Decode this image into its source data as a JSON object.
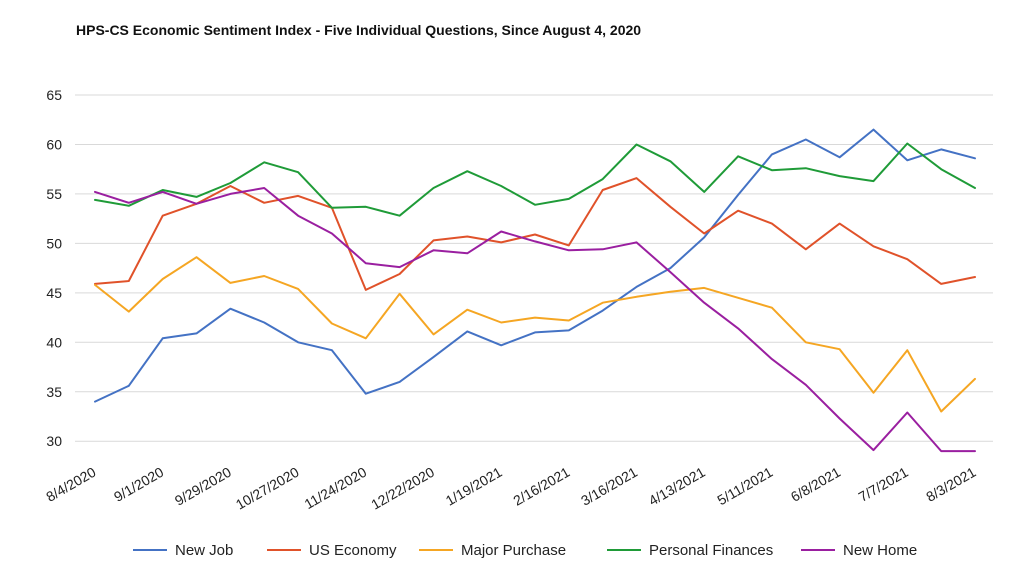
{
  "chart_data": {
    "type": "line",
    "title": "HPS-CS Economic Sentiment Index - Five Individual Questions, Since August 4, 2020",
    "xlabel": "",
    "ylabel": "",
    "ylim": [
      28,
      65
    ],
    "yticks": [
      30,
      35,
      40,
      45,
      50,
      55,
      60,
      65
    ],
    "grid": true,
    "legend_position": "bottom",
    "x_tick_labels": [
      "8/4/2020",
      "9/1/2020",
      "9/29/2020",
      "10/27/2020",
      "11/24/2020",
      "12/22/2020",
      "1/19/2021",
      "2/16/2021",
      "3/16/2021",
      "4/13/2021",
      "5/11/2021",
      "6/8/2021",
      "7/7/2021",
      "8/3/2021"
    ],
    "x_tick_positions": [
      0,
      2,
      4,
      6,
      8,
      10,
      12,
      14,
      16,
      18,
      20,
      22,
      24,
      26
    ],
    "series": [
      {
        "name": "New Job",
        "color": "#4472c4",
        "values": [
          34.0,
          35.6,
          40.4,
          40.9,
          43.4,
          42.0,
          40.0,
          39.2,
          34.8,
          36.0,
          38.5,
          41.1,
          39.7,
          41.0,
          41.2,
          43.2,
          45.6,
          47.5,
          50.6,
          54.9,
          59.0,
          60.5,
          58.7,
          61.5,
          58.4,
          59.5,
          58.6
        ]
      },
      {
        "name": "US Economy",
        "color": "#e0522a",
        "values": [
          45.9,
          46.2,
          52.8,
          54.0,
          55.8,
          54.1,
          54.8,
          53.6,
          45.3,
          46.9,
          50.3,
          50.7,
          50.1,
          50.9,
          49.8,
          55.4,
          56.6,
          53.7,
          51.0,
          53.3,
          52.0,
          49.4,
          52.0,
          49.7,
          48.4,
          45.9,
          46.6
        ]
      },
      {
        "name": "Major Purchase",
        "color": "#f5a623",
        "values": [
          45.8,
          43.1,
          46.4,
          48.6,
          46.0,
          46.7,
          45.4,
          41.9,
          40.4,
          44.9,
          40.8,
          43.3,
          42.0,
          42.5,
          42.2,
          44.0,
          44.6,
          45.1,
          45.5,
          44.5,
          43.5,
          40.0,
          39.3,
          34.9,
          39.2,
          33.0,
          36.3
        ]
      },
      {
        "name": "Personal Finances",
        "color": "#1f9b38",
        "values": [
          54.4,
          53.8,
          55.4,
          54.7,
          56.1,
          58.2,
          57.2,
          53.6,
          53.7,
          52.8,
          55.6,
          57.3,
          55.8,
          53.9,
          54.5,
          56.5,
          60.0,
          58.3,
          55.2,
          58.8,
          57.4,
          57.6,
          56.8,
          56.3,
          60.1,
          57.5,
          55.6
        ]
      },
      {
        "name": "New Home",
        "color": "#9a1fa0",
        "values": [
          55.2,
          54.1,
          55.2,
          54.0,
          55.0,
          55.6,
          52.8,
          51.0,
          48.0,
          47.6,
          49.3,
          49.0,
          51.2,
          50.2,
          49.3,
          49.4,
          50.1,
          47.1,
          44.0,
          41.4,
          38.3,
          35.7,
          32.3,
          29.1,
          32.9,
          29.0,
          29.0
        ]
      }
    ]
  }
}
